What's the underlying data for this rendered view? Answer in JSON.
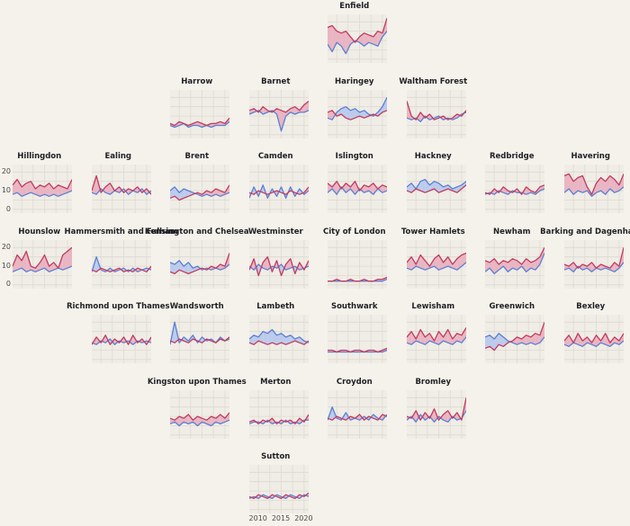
{
  "page": {
    "background": "#f4f2ea"
  },
  "chart_data": {
    "type": "line",
    "title": "",
    "layout": "geofacet-london-boroughs",
    "grid": {
      "rows": 7,
      "cols": 8
    },
    "x": [
      2008,
      2009,
      2010,
      2011,
      2012,
      2013,
      2014,
      2015,
      2016,
      2017,
      2018,
      2019,
      2020,
      2021
    ],
    "x_ticks": [
      2010,
      2015,
      2020
    ],
    "y_ticks": [
      20,
      10,
      0
    ],
    "grid_x": [
      2010,
      2012.5,
      2015,
      2017.5,
      2020
    ],
    "grid_y": [
      0,
      5,
      10,
      15,
      20
    ],
    "ylim": [
      -2,
      24
    ],
    "legend": "none",
    "series": [
      "red",
      "blue"
    ],
    "colors": {
      "red": "#c23a5f",
      "blue": "#5b7fd4",
      "ribbon_red": "#e9b5c2",
      "ribbon_blue": "#bccbec",
      "grid": "#dcdad1",
      "panel_bg": "#efede5"
    },
    "panels": [
      {
        "name": "Enfield",
        "row": 1,
        "col": 5,
        "red": [
          17,
          18,
          15,
          14,
          15,
          12,
          9,
          12,
          14,
          13,
          12,
          15,
          14,
          22
        ],
        "blue": [
          8,
          4,
          9,
          7,
          3,
          8,
          10,
          9,
          7,
          9,
          8,
          7,
          12,
          15
        ]
      },
      {
        "name": "Harrow",
        "row": 2,
        "col": 3,
        "red": [
          6,
          5,
          7,
          6,
          5,
          6,
          7,
          6,
          5,
          6,
          6,
          7,
          6,
          9
        ],
        "blue": [
          5,
          4,
          5,
          6,
          4,
          5,
          5,
          4,
          5,
          4,
          5,
          5,
          5,
          7
        ]
      },
      {
        "name": "Barnet",
        "row": 2,
        "col": 4,
        "red": [
          13,
          14,
          12,
          15,
          13,
          12,
          14,
          13,
          12,
          14,
          15,
          13,
          16,
          18
        ],
        "blue": [
          11,
          12,
          13,
          11,
          12,
          13,
          11,
          2,
          10,
          12,
          11,
          12,
          12,
          13
        ]
      },
      {
        "name": "Haringey",
        "row": 2,
        "col": 5,
        "red": [
          12,
          13,
          10,
          11,
          9,
          8,
          9,
          10,
          9,
          10,
          11,
          10,
          12,
          13
        ],
        "blue": [
          9,
          8,
          12,
          14,
          15,
          13,
          14,
          12,
          13,
          11,
          10,
          12,
          15,
          20
        ]
      },
      {
        "name": "Waltham Forest",
        "row": 2,
        "col": 6,
        "red": [
          18,
          10,
          8,
          12,
          9,
          11,
          8,
          9,
          10,
          8,
          9,
          11,
          10,
          13
        ],
        "blue": [
          9,
          8,
          9,
          7,
          10,
          8,
          9,
          10,
          8,
          9,
          8,
          9,
          11,
          12
        ]
      },
      {
        "name": "Hillingdon",
        "row": 3,
        "col": 1,
        "show_y_axis": true,
        "red": [
          13,
          16,
          12,
          14,
          15,
          11,
          13,
          12,
          14,
          11,
          13,
          12,
          11,
          16
        ],
        "blue": [
          8,
          9,
          7,
          8,
          9,
          8,
          7,
          8,
          7,
          8,
          7,
          8,
          9,
          10
        ]
      },
      {
        "name": "Ealing",
        "row": 3,
        "col": 2,
        "red": [
          10,
          18,
          9,
          12,
          14,
          10,
          12,
          9,
          11,
          10,
          12,
          9,
          11,
          8
        ],
        "blue": [
          9,
          8,
          11,
          9,
          8,
          10,
          9,
          11,
          8,
          10,
          9,
          11,
          8,
          10
        ]
      },
      {
        "name": "Brent",
        "row": 3,
        "col": 3,
        "red": [
          6,
          7,
          5,
          6,
          7,
          8,
          9,
          8,
          10,
          9,
          11,
          10,
          9,
          13
        ],
        "blue": [
          10,
          12,
          9,
          11,
          10,
          9,
          8,
          7,
          8,
          7,
          8,
          7,
          8,
          9
        ]
      },
      {
        "name": "Camden",
        "row": 3,
        "col": 4,
        "red": [
          9,
          8,
          10,
          9,
          8,
          9,
          10,
          9,
          8,
          10,
          9,
          8,
          9,
          12
        ],
        "blue": [
          6,
          12,
          7,
          13,
          6,
          11,
          7,
          12,
          6,
          12,
          7,
          11,
          8,
          10
        ]
      },
      {
        "name": "Islington",
        "row": 3,
        "col": 5,
        "red": [
          14,
          12,
          15,
          11,
          14,
          12,
          15,
          10,
          13,
          12,
          14,
          11,
          13,
          12
        ],
        "blue": [
          9,
          11,
          8,
          12,
          9,
          11,
          8,
          11,
          9,
          10,
          8,
          11,
          9,
          10
        ]
      },
      {
        "name": "Hackney",
        "row": 3,
        "col": 6,
        "red": [
          10,
          9,
          11,
          10,
          9,
          10,
          11,
          9,
          10,
          11,
          10,
          9,
          11,
          13
        ],
        "blue": [
          12,
          14,
          11,
          15,
          16,
          13,
          15,
          14,
          12,
          13,
          11,
          12,
          13,
          15
        ]
      },
      {
        "name": "Redbridge",
        "row": 3,
        "col": 7,
        "red": [
          9,
          8,
          11,
          9,
          12,
          10,
          9,
          11,
          8,
          12,
          10,
          9,
          12,
          13
        ],
        "blue": [
          8,
          9,
          8,
          10,
          9,
          8,
          10,
          9,
          9,
          8,
          9,
          8,
          10,
          11
        ]
      },
      {
        "name": "Havering",
        "row": 3,
        "col": 8,
        "red": [
          18,
          19,
          15,
          17,
          18,
          12,
          8,
          14,
          17,
          15,
          18,
          16,
          13,
          19
        ],
        "blue": [
          9,
          11,
          8,
          10,
          9,
          10,
          7,
          9,
          10,
          8,
          11,
          9,
          10,
          12
        ]
      },
      {
        "name": "Hounslow",
        "row": 4,
        "col": 1,
        "show_y_axis": true,
        "red": [
          10,
          16,
          13,
          18,
          10,
          9,
          12,
          16,
          10,
          12,
          9,
          16,
          18,
          20
        ],
        "blue": [
          7,
          8,
          9,
          7,
          8,
          7,
          8,
          9,
          7,
          8,
          9,
          8,
          9,
          10
        ]
      },
      {
        "name": "Hammersmith and Fulham",
        "row": 4,
        "col": 2,
        "red": [
          8,
          7,
          9,
          8,
          7,
          8,
          9,
          7,
          8,
          7,
          9,
          8,
          7,
          10
        ],
        "blue": [
          7,
          15,
          8,
          7,
          9,
          7,
          8,
          9,
          7,
          9,
          7,
          8,
          9,
          8
        ]
      },
      {
        "name": "Kensington and Chelsea",
        "row": 4,
        "col": 3,
        "red": [
          7,
          6,
          8,
          7,
          6,
          7,
          8,
          9,
          8,
          10,
          9,
          11,
          10,
          17
        ],
        "blue": [
          12,
          11,
          13,
          10,
          12,
          9,
          10,
          8,
          9,
          8,
          9,
          8,
          9,
          11
        ]
      },
      {
        "name": "Westminster",
        "row": 4,
        "col": 4,
        "red": [
          8,
          14,
          5,
          12,
          15,
          7,
          13,
          5,
          11,
          14,
          6,
          12,
          8,
          13
        ],
        "blue": [
          10,
          8,
          11,
          9,
          8,
          10,
          9,
          11,
          8,
          9,
          10,
          8,
          9,
          10
        ]
      },
      {
        "name": "City of London",
        "row": 4,
        "col": 5,
        "red": [
          2,
          2,
          3,
          2,
          2,
          3,
          2,
          2,
          3,
          2,
          2,
          3,
          3,
          4
        ],
        "blue": [
          2,
          2,
          2,
          2,
          2,
          2,
          2,
          2,
          2,
          2,
          2,
          2,
          2,
          3
        ]
      },
      {
        "name": "Tower Hamlets",
        "row": 4,
        "col": 6,
        "red": [
          12,
          15,
          11,
          16,
          13,
          10,
          14,
          16,
          12,
          15,
          11,
          14,
          16,
          17
        ],
        "blue": [
          9,
          8,
          10,
          9,
          8,
          9,
          10,
          8,
          9,
          10,
          9,
          8,
          10,
          12
        ]
      },
      {
        "name": "Newham",
        "row": 4,
        "col": 7,
        "red": [
          13,
          12,
          14,
          11,
          13,
          12,
          14,
          13,
          11,
          14,
          12,
          13,
          15,
          20
        ],
        "blue": [
          7,
          9,
          6,
          8,
          10,
          7,
          9,
          8,
          10,
          7,
          9,
          8,
          11,
          17
        ]
      },
      {
        "name": "Barking and Dagenham",
        "row": 4,
        "col": 8,
        "red": [
          11,
          10,
          12,
          9,
          11,
          10,
          12,
          9,
          11,
          10,
          9,
          12,
          10,
          20
        ],
        "blue": [
          8,
          9,
          7,
          10,
          8,
          9,
          7,
          9,
          8,
          9,
          8,
          7,
          9,
          12
        ]
      },
      {
        "name": "Richmond upon Thames",
        "row": 5,
        "col": 2,
        "red": [
          8,
          12,
          9,
          13,
          8,
          11,
          9,
          12,
          8,
          13,
          9,
          11,
          8,
          12
        ],
        "blue": [
          9,
          8,
          10,
          9,
          11,
          8,
          10,
          9,
          10,
          8,
          10,
          9,
          10,
          9
        ]
      },
      {
        "name": "Wandsworth",
        "row": 5,
        "col": 3,
        "red": [
          10,
          9,
          11,
          10,
          9,
          11,
          10,
          9,
          11,
          10,
          9,
          11,
          10,
          12
        ],
        "blue": [
          8,
          20,
          9,
          12,
          10,
          13,
          9,
          12,
          10,
          11,
          9,
          12,
          10,
          11
        ]
      },
      {
        "name": "Lambeth",
        "row": 5,
        "col": 4,
        "red": [
          9,
          8,
          10,
          9,
          8,
          9,
          8,
          9,
          8,
          9,
          10,
          9,
          8,
          10
        ],
        "blue": [
          11,
          13,
          12,
          15,
          14,
          16,
          13,
          14,
          12,
          13,
          11,
          12,
          10,
          9
        ]
      },
      {
        "name": "Southwark",
        "row": 5,
        "col": 5,
        "red": [
          5,
          5,
          4,
          5,
          5,
          4,
          5,
          5,
          4,
          5,
          5,
          4,
          5,
          6
        ],
        "blue": [
          4,
          4,
          4,
          4,
          4,
          4,
          4,
          4,
          4,
          4,
          4,
          4,
          4,
          5
        ]
      },
      {
        "name": "Lewisham",
        "row": 5,
        "col": 6,
        "red": [
          12,
          15,
          11,
          16,
          12,
          14,
          10,
          15,
          12,
          16,
          11,
          14,
          13,
          17
        ],
        "blue": [
          9,
          8,
          10,
          9,
          8,
          10,
          9,
          8,
          10,
          9,
          8,
          10,
          9,
          12
        ]
      },
      {
        "name": "Greenwich",
        "row": 5,
        "col": 7,
        "red": [
          6,
          7,
          5,
          8,
          7,
          9,
          10,
          12,
          11,
          13,
          12,
          14,
          13,
          20
        ],
        "blue": [
          12,
          13,
          11,
          14,
          12,
          10,
          9,
          8,
          9,
          8,
          9,
          8,
          9,
          12
        ]
      },
      {
        "name": "Bexley",
        "row": 5,
        "col": 8,
        "red": [
          10,
          13,
          9,
          14,
          10,
          12,
          9,
          13,
          10,
          14,
          9,
          12,
          10,
          14
        ],
        "blue": [
          8,
          7,
          9,
          8,
          7,
          9,
          8,
          7,
          9,
          8,
          7,
          9,
          8,
          10
        ]
      },
      {
        "name": "Kingston upon Thames",
        "row": 6,
        "col": 3,
        "red": [
          9,
          8,
          10,
          9,
          11,
          8,
          10,
          9,
          8,
          10,
          9,
          11,
          9,
          12
        ],
        "blue": [
          6,
          7,
          5,
          7,
          6,
          7,
          5,
          7,
          6,
          5,
          7,
          6,
          7,
          8
        ]
      },
      {
        "name": "Merton",
        "row": 6,
        "col": 4,
        "red": [
          7,
          8,
          6,
          8,
          7,
          9,
          6,
          8,
          7,
          8,
          6,
          9,
          7,
          11
        ],
        "blue": [
          6,
          7,
          7,
          6,
          8,
          6,
          7,
          6,
          8,
          6,
          7,
          6,
          8,
          8
        ]
      },
      {
        "name": "Croydon",
        "row": 6,
        "col": 5,
        "red": [
          9,
          8,
          10,
          9,
          8,
          10,
          9,
          11,
          8,
          10,
          9,
          8,
          11,
          10
        ],
        "blue": [
          8,
          15,
          9,
          8,
          12,
          8,
          9,
          8,
          10,
          8,
          11,
          9,
          8,
          11
        ]
      },
      {
        "name": "Bromley",
        "row": 6,
        "col": 6,
        "red": [
          10,
          9,
          13,
          8,
          12,
          9,
          14,
          8,
          11,
          13,
          9,
          12,
          8,
          20
        ],
        "blue": [
          8,
          10,
          7,
          11,
          8,
          10,
          7,
          10,
          8,
          7,
          10,
          8,
          9,
          13
        ]
      },
      {
        "name": "Sutton",
        "row": 7,
        "col": 4,
        "show_x_axis": true,
        "red": [
          7,
          6,
          8,
          7,
          6,
          8,
          7,
          6,
          8,
          7,
          6,
          8,
          7,
          9
        ],
        "blue": [
          6,
          7,
          6,
          8,
          7,
          6,
          8,
          7,
          6,
          8,
          7,
          6,
          8,
          7
        ]
      }
    ]
  }
}
